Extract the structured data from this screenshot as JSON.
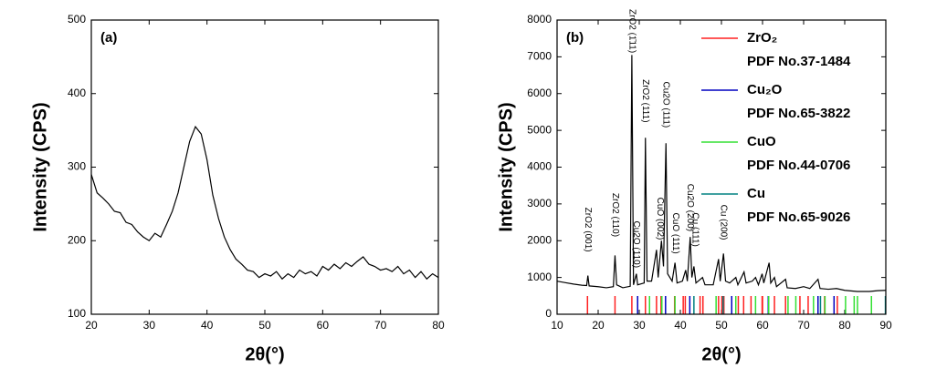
{
  "chart_data": [
    {
      "type": "line",
      "panel_label": "(a)",
      "x_label": "2θ(°)",
      "y_label": "Intensity (CPS)",
      "xlim": [
        20,
        80
      ],
      "xticks": [
        20,
        30,
        40,
        50,
        60,
        70,
        80
      ],
      "ylim": [
        100,
        500
      ],
      "yticks": [
        100,
        200,
        300,
        400,
        500
      ],
      "x": [
        20,
        21,
        22,
        23,
        24,
        25,
        26,
        27,
        28,
        29,
        30,
        31,
        32,
        33,
        34,
        35,
        36,
        37,
        38,
        39,
        40,
        41,
        42,
        43,
        44,
        45,
        46,
        47,
        48,
        49,
        50,
        51,
        52,
        53,
        54,
        55,
        56,
        57,
        58,
        59,
        60,
        61,
        62,
        63,
        64,
        65,
        66,
        67,
        68,
        69,
        70,
        71,
        72,
        73,
        74,
        75,
        76,
        77,
        78,
        79,
        80
      ],
      "series": [
        {
          "color": "#000000",
          "values": [
            290,
            265,
            258,
            250,
            240,
            238,
            225,
            222,
            212,
            205,
            200,
            210,
            205,
            222,
            240,
            265,
            300,
            335,
            355,
            345,
            310,
            262,
            230,
            205,
            188,
            175,
            168,
            160,
            158,
            150,
            155,
            152,
            158,
            148,
            155,
            150,
            160,
            155,
            158,
            152,
            165,
            160,
            168,
            162,
            170,
            165,
            172,
            178,
            168,
            165,
            160,
            162,
            158,
            165,
            155,
            160,
            150,
            158,
            148,
            155,
            150
          ]
        }
      ]
    },
    {
      "type": "line",
      "panel_label": "(b)",
      "x_label": "2θ(°)",
      "y_label": "Intensity (CPS)",
      "xlim": [
        10,
        90
      ],
      "xticks": [
        10,
        20,
        30,
        40,
        50,
        60,
        70,
        80,
        90
      ],
      "ylim": [
        0,
        8000
      ],
      "yticks": [
        0,
        1000,
        2000,
        3000,
        4000,
        5000,
        6000,
        7000,
        8000
      ],
      "x": [
        10,
        12,
        14,
        16,
        17.2,
        17.5,
        17.8,
        20,
        22,
        23.7,
        24.1,
        24.5,
        26,
        27.8,
        28.2,
        28.6,
        29.3,
        29.6,
        31.2,
        31.5,
        31.9,
        33,
        34.2,
        34.6,
        35.4,
        35.9,
        36.5,
        36.9,
        38,
        38.7,
        39.2,
        40.5,
        41.3,
        41.7,
        42.4,
        42.8,
        43.3,
        43.8,
        45.4,
        46,
        48,
        49.3,
        49.7,
        50.5,
        51,
        52,
        53.5,
        54,
        55.5,
        56,
        57.5,
        58.3,
        59,
        59.9,
        60.3,
        61.6,
        62,
        62.9,
        63.4,
        65.6,
        66,
        68,
        70,
        71.5,
        73.5,
        74,
        76,
        78,
        80,
        83,
        86,
        88,
        90
      ],
      "series": [
        {
          "color": "#000000",
          "values": [
            900,
            860,
            820,
            790,
            780,
            1050,
            770,
            750,
            720,
            750,
            1600,
            800,
            720,
            760,
            7050,
            800,
            1100,
            800,
            850,
            4800,
            900,
            900,
            1750,
            1000,
            2000,
            1300,
            4650,
            1100,
            900,
            1400,
            850,
            900,
            1200,
            900,
            2100,
            1000,
            1300,
            850,
            1000,
            800,
            800,
            1500,
            900,
            1650,
            900,
            850,
            1000,
            800,
            1150,
            850,
            900,
            1000,
            800,
            1100,
            850,
            1400,
            850,
            1000,
            750,
            950,
            720,
            700,
            750,
            700,
            950,
            700,
            680,
            700,
            650,
            620,
            620,
            640,
            650
          ]
        }
      ],
      "annotations": [
        {
          "text": "ZrO2 (001)",
          "x": 17.5,
          "y": 2300
        },
        {
          "text": "ZrO2 (110)",
          "x": 24.1,
          "y": 2700
        },
        {
          "text": "ZrO2 (1̄11)",
          "x": 28.2,
          "y": 7700
        },
        {
          "text": "Cu2O (110)",
          "x": 29.3,
          "y": 1900
        },
        {
          "text": "ZrO2 (111)",
          "x": 31.5,
          "y": 5800
        },
        {
          "text": "CuO (002)",
          "x": 35.0,
          "y": 2600
        },
        {
          "text": "Cu2O (111)",
          "x": 36.5,
          "y": 5700
        },
        {
          "text": "CuO (111)",
          "x": 38.8,
          "y": 2200
        },
        {
          "text": "Cu2O (200)",
          "x": 42.4,
          "y": 2900
        },
        {
          "text": "Cu (111)",
          "x": 43.6,
          "y": 2300
        },
        {
          "text": "Cu (200)",
          "x": 50.5,
          "y": 2500
        }
      ],
      "reference_patterns": [
        {
          "name": "ZrO₂",
          "pdf": "PDF No.37-1484",
          "color": "#ff2020",
          "positions": [
            17.4,
            24.1,
            28.2,
            31.5,
            34.2,
            35.3,
            38.6,
            40.7,
            41.2,
            44.8,
            45.5,
            49.3,
            50.1,
            50.6,
            54.1,
            55.4,
            57.2,
            59.9,
            60.0,
            62.9,
            65.6,
            69.1,
            71.1,
            75.1,
            78.2
          ]
        },
        {
          "name": "Cu₂O",
          "pdf": "PDF No.65-3822",
          "color": "#0000c0",
          "positions": [
            29.6,
            36.4,
            42.3,
            52.5,
            61.4,
            73.5,
            77.4
          ]
        },
        {
          "name": "CuO",
          "pdf": "PDF No.44-0706",
          "color": "#33e033",
          "positions": [
            32.5,
            35.5,
            38.7,
            48.7,
            53.5,
            58.3,
            61.5,
            66.2,
            68.1,
            72.4,
            75.2,
            80.2,
            82.3,
            83.1,
            86.5
          ]
        },
        {
          "name": "Cu",
          "pdf": "PDF No.65-9026",
          "color": "#008080",
          "positions": [
            43.3,
            50.4,
            74.1,
            89.9
          ]
        }
      ]
    }
  ]
}
